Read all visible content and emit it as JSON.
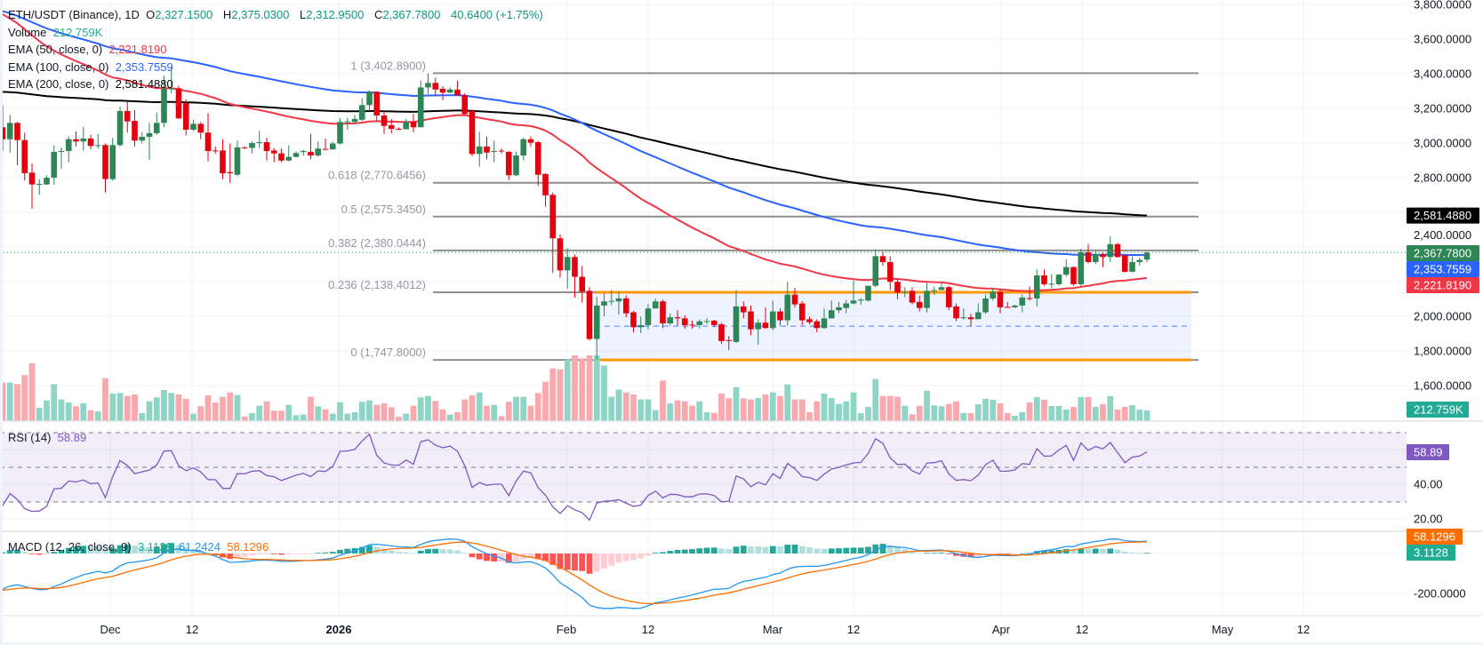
{
  "header": {
    "symbol": "ETH/USDT (Binance), 1D",
    "o_label": "O",
    "open": "2,327.1500",
    "h_label": "H",
    "high": "2,375.0300",
    "l_label": "L",
    "low": "2,312.9500",
    "c_label": "C",
    "close": "2,367.7800",
    "change": "40.6400 (+1.75%)"
  },
  "legend": {
    "volume_label": "Volume",
    "volume_value": "212.759K",
    "ema50_label": "EMA (50, close, 0)",
    "ema50_value": "2,221.8190",
    "ema100_label": "EMA (100, close, 0)",
    "ema100_value": "2,353.7559",
    "ema200_label": "EMA (200, close, 0)",
    "ema200_value": "2,581.4880",
    "rsi_label": "RSI (14)",
    "rsi_value": "58.89",
    "macd_label": "MACD (12, 26, close, 9)",
    "macd_hist": "3.1128",
    "macd_line": "61.2424",
    "macd_signal": "58.1296"
  },
  "colors": {
    "up": "#2e8555",
    "down": "#e3000f",
    "vol_up": "#8fd5c6",
    "vol_down": "#f9a8ae",
    "ema50": "#f23645",
    "ema100": "#2962ff",
    "ema200": "#000000",
    "rsi": "#7e57c2",
    "macd": "#2196f3",
    "signal": "#ff6d00",
    "box": "#ff9800"
  },
  "price_axis": [
    "3,800.0000",
    "3,600.0000",
    "3,400.0000",
    "3,200.0000",
    "3,000.0000",
    "2,800.0000",
    "2,400.0000",
    "2,000.0000",
    "1,800.0000",
    "1,600.0000"
  ],
  "price_axis_values": [
    3800,
    3600,
    3400,
    3200,
    3000,
    2800,
    2400,
    2000,
    1800,
    1600
  ],
  "badges": {
    "ema200": "2,581.4880",
    "last": "2,367.7800",
    "ema100": "2,353.7559",
    "ema50": "2,221.8190",
    "volume": "212.759K",
    "rsi": "58.89",
    "macd_signal": "58.1296",
    "macd_hist": "3.1128"
  },
  "rsi_axis": [
    "40.00",
    "20.00"
  ],
  "macd_axis": [
    "-200.0000"
  ],
  "time_axis": [
    "Dec",
    "12",
    "2026",
    "Feb",
    "12",
    "Mar",
    "12",
    "Apr",
    "12",
    "May",
    "12"
  ],
  "fib": [
    {
      "label": "1 (3,402.8900)",
      "value": 3402.89
    },
    {
      "label": "0.618 (2,770.6456)",
      "value": 2770.6456
    },
    {
      "label": "0.5 (2,575.3450)",
      "value": 2575.345
    },
    {
      "label": "0.382 (2,380.0444)",
      "value": 2380.0444
    },
    {
      "label": "0.236 (2,138.4012)",
      "value": 2138.4012
    },
    {
      "label": "0 (1,747.8000)",
      "value": 1747.8
    }
  ],
  "range_box": {
    "top": 2138.4012,
    "bottom": 1747.8,
    "mid": 1943.1
  },
  "chart_data": {
    "type": "candlestick",
    "title": "ETH/USDT (Binance), 1D",
    "ylim": [
      1520,
      3820
    ],
    "ema_final": {
      "ema50": 2221.819,
      "ema100": 2353.7559,
      "ema200": 2581.488
    },
    "rsi_final": 58.89,
    "macd_final": {
      "macd": 61.2424,
      "signal": 58.1296,
      "hist": 3.1128
    },
    "candles_ohlc": [
      [
        3168,
        3245,
        3005,
        3091
      ],
      [
        3091,
        3219,
        2954,
        3022
      ],
      [
        3022,
        3162,
        2945,
        3116
      ],
      [
        3116,
        3122,
        2872,
        3017
      ],
      [
        3017,
        3060,
        2783,
        2826
      ],
      [
        2829,
        2882,
        2621,
        2761
      ],
      [
        2761,
        2792,
        2701,
        2764
      ],
      [
        2761,
        2814,
        2758,
        2800
      ],
      [
        2800,
        2988,
        2758,
        2949
      ],
      [
        2949,
        2975,
        2851,
        2954
      ],
      [
        2954,
        3040,
        2889,
        3022
      ],
      [
        3022,
        3067,
        2980,
        3009
      ],
      [
        3009,
        3094,
        2957,
        3026
      ],
      [
        3026,
        3048,
        2963,
        2983
      ],
      [
        2983,
        3053,
        2969,
        2988
      ],
      [
        2988,
        2997,
        2715,
        2792
      ],
      [
        2792,
        3031,
        2783,
        2988
      ],
      [
        2988,
        3210,
        2980,
        3185
      ],
      [
        3185,
        3236,
        3060,
        3125
      ],
      [
        3128,
        3190,
        2980,
        3014
      ],
      [
        3014,
        3065,
        2997,
        3036
      ],
      [
        3036,
        3116,
        2903,
        3057
      ],
      [
        3057,
        3176,
        3048,
        3116
      ],
      [
        3116,
        3390,
        3091,
        3313
      ],
      [
        3310,
        3441,
        3287,
        3316
      ],
      [
        3316,
        3330,
        3142,
        3142
      ],
      [
        3231,
        3253,
        3043,
        3077
      ],
      [
        3077,
        3134,
        3070,
        3111
      ],
      [
        3111,
        3122,
        3022,
        3060
      ],
      [
        3060,
        3173,
        2894,
        2954
      ],
      [
        2957,
        2980,
        2940,
        2954
      ],
      [
        2957,
        3022,
        2792,
        2826
      ],
      [
        2832,
        2997,
        2769,
        2826
      ],
      [
        2817,
        3014,
        2809,
        2975
      ],
      [
        2975,
        2980,
        2965,
        2972
      ],
      [
        2972,
        3009,
        2940,
        3000
      ],
      [
        3000,
        3070,
        2971,
        3005
      ],
      [
        3005,
        3031,
        2899,
        2954
      ],
      [
        2957,
        2971,
        2889,
        2940
      ],
      [
        2940,
        2968,
        2889,
        2899
      ],
      [
        2899,
        2988,
        2894,
        2920
      ],
      [
        2920,
        2951,
        2916,
        2942
      ],
      [
        2948,
        2960,
        2927,
        2954
      ],
      [
        2949,
        3053,
        2906,
        2928
      ],
      [
        2928,
        3009,
        2920,
        2968
      ],
      [
        2966,
        3026,
        2960,
        2963
      ],
      [
        2963,
        3009,
        2963,
        2997
      ],
      [
        2997,
        3145,
        2992,
        3122
      ],
      [
        3121,
        3145,
        3077,
        3125
      ],
      [
        3122,
        3162,
        3108,
        3139
      ],
      [
        3134,
        3258,
        3128,
        3219
      ],
      [
        3219,
        3304,
        3185,
        3296
      ],
      [
        3296,
        3299,
        3128,
        3159
      ],
      [
        3159,
        3185,
        3053,
        3099
      ],
      [
        3103,
        3139,
        3057,
        3082
      ],
      [
        3082,
        3090,
        3075,
        3080
      ],
      [
        3080,
        3139,
        3077,
        3122
      ],
      [
        3122,
        3168,
        3063,
        3091
      ],
      [
        3091,
        3361,
        3091,
        3321
      ],
      [
        3321,
        3402,
        3282,
        3347
      ],
      [
        3347,
        3378,
        3270,
        3309
      ],
      [
        3313,
        3327,
        3248,
        3291
      ],
      [
        3291,
        3321,
        3287,
        3309
      ],
      [
        3308,
        3361,
        3275,
        3275
      ],
      [
        3275,
        3287,
        3159,
        3168
      ],
      [
        3185,
        3193,
        2923,
        2937
      ],
      [
        2937,
        3065,
        2863,
        2980
      ],
      [
        2980,
        3036,
        2906,
        2945
      ],
      [
        2950,
        3014,
        2889,
        2954
      ],
      [
        2956,
        2970,
        2940,
        2954
      ],
      [
        2949,
        2954,
        2786,
        2814
      ],
      [
        2814,
        2951,
        2809,
        2928
      ],
      [
        2928,
        3031,
        2899,
        3022
      ],
      [
        3022,
        3039,
        2980,
        3002
      ],
      [
        3005,
        3012,
        2752,
        2817
      ],
      [
        2821,
        2826,
        2633,
        2698
      ],
      [
        2701,
        2715,
        2250,
        2450
      ],
      [
        2450,
        2472,
        2223,
        2265
      ],
      [
        2265,
        2393,
        2159,
        2342
      ],
      [
        2342,
        2356,
        2108,
        2228
      ],
      [
        2228,
        2291,
        2079,
        2142
      ],
      [
        2147,
        2168,
        1860,
        1869
      ],
      [
        1869,
        2113,
        1748,
        2062
      ],
      [
        2062,
        2137,
        2000,
        2086
      ],
      [
        2086,
        2151,
        2065,
        2089
      ],
      [
        2086,
        2142,
        2011,
        2103
      ],
      [
        2103,
        2120,
        1994,
        2017
      ],
      [
        2023,
        2031,
        1908,
        1937
      ],
      [
        1937,
        1999,
        1903,
        1949
      ],
      [
        1949,
        2069,
        1925,
        2045
      ],
      [
        2045,
        2103,
        2045,
        2086
      ],
      [
        2086,
        2096,
        1932,
        1959
      ],
      [
        1959,
        2017,
        1946,
        1994
      ],
      [
        1994,
        2035,
        1946,
        1988
      ],
      [
        1988,
        2006,
        1929,
        1949
      ],
      [
        1952,
        1975,
        1929,
        1949
      ],
      [
        1949,
        1983,
        1929,
        1971
      ],
      [
        1970,
        1990,
        1955,
        1972
      ],
      [
        1975,
        1980,
        1937,
        1949
      ],
      [
        1954,
        1963,
        1840,
        1857
      ],
      [
        1862,
        1886,
        1806,
        1860
      ],
      [
        1852,
        2151,
        1847,
        2057
      ],
      [
        2057,
        2086,
        1988,
        2023
      ],
      [
        2028,
        2062,
        1891,
        1925
      ],
      [
        1925,
        1983,
        1835,
        1963
      ],
      [
        1963,
        2052,
        1929,
        1932
      ],
      [
        1932,
        2091,
        1920,
        2028
      ],
      [
        2028,
        2045,
        1946,
        1977
      ],
      [
        1977,
        2199,
        1946,
        2125
      ],
      [
        2125,
        2164,
        2052,
        2069
      ],
      [
        2074,
        2086,
        1949,
        1977
      ],
      [
        1983,
        1997,
        1954,
        1966
      ],
      [
        1971,
        1983,
        1908,
        1932
      ],
      [
        1932,
        2045,
        1929,
        1988
      ],
      [
        1988,
        2091,
        1988,
        2035
      ],
      [
        2035,
        2083,
        2018,
        2052
      ],
      [
        2048,
        2096,
        2018,
        2074
      ],
      [
        2074,
        2206,
        2069,
        2091
      ],
      [
        2094,
        2105,
        2066,
        2096
      ],
      [
        2091,
        2176,
        2086,
        2176
      ],
      [
        2176,
        2387,
        2168,
        2347
      ],
      [
        2347,
        2373,
        2291,
        2313
      ],
      [
        2313,
        2347,
        2151,
        2199
      ],
      [
        2199,
        2216,
        2099,
        2137
      ],
      [
        2140,
        2168,
        2110,
        2142
      ],
      [
        2147,
        2168,
        2069,
        2079
      ],
      [
        2083,
        2120,
        2028,
        2048
      ],
      [
        2048,
        2193,
        2023,
        2147
      ],
      [
        2148,
        2171,
        2124,
        2151
      ],
      [
        2151,
        2193,
        2151,
        2168
      ],
      [
        2168,
        2176,
        2035,
        2052
      ],
      [
        2057,
        2074,
        1971,
        1988
      ],
      [
        1990,
        2045,
        1982,
        1994
      ],
      [
        1994,
        2014,
        1942,
        1983
      ],
      [
        1983,
        2074,
        1983,
        2023
      ],
      [
        2023,
        2125,
        2014,
        2103
      ],
      [
        2103,
        2164,
        2091,
        2142
      ],
      [
        2142,
        2159,
        2018,
        2052
      ],
      [
        2054,
        2083,
        2048,
        2052
      ],
      [
        2052,
        2065,
        2048,
        2062
      ],
      [
        2062,
        2125,
        2023,
        2108
      ],
      [
        2105,
        2171,
        2091,
        2103
      ],
      [
        2103,
        2270,
        2057,
        2236
      ],
      [
        2236,
        2270,
        2176,
        2185
      ],
      [
        2186,
        2244,
        2160,
        2188
      ],
      [
        2185,
        2245,
        2176,
        2240
      ],
      [
        2240,
        2330,
        2228,
        2284
      ],
      [
        2284,
        2288,
        2176,
        2185
      ],
      [
        2185,
        2390,
        2176,
        2370
      ],
      [
        2370,
        2416,
        2305,
        2313
      ],
      [
        2313,
        2376,
        2301,
        2359
      ],
      [
        2359,
        2370,
        2284,
        2342
      ],
      [
        2342,
        2462,
        2313,
        2416
      ],
      [
        2416,
        2424,
        2339,
        2342
      ],
      [
        2352,
        2356,
        2253,
        2257
      ],
      [
        2257,
        2347,
        2253,
        2313
      ],
      [
        2313,
        2339,
        2291,
        2325
      ],
      [
        2327.15,
        2375.03,
        2312.95,
        2367.78
      ]
    ],
    "volume_k": [
      578,
      767,
      767,
      738,
      915,
      1150,
      265,
      413,
      738,
      431,
      372,
      295,
      354,
      218,
      195,
      855,
      549,
      560,
      502,
      531,
      159,
      395,
      472,
      620,
      560,
      531,
      443,
      148,
      295,
      513,
      372,
      484,
      572,
      519,
      89,
      159,
      307,
      395,
      207,
      207,
      325,
      118,
      130,
      484,
      295,
      236,
      148,
      378,
      148,
      177,
      384,
      413,
      325,
      354,
      277,
      89,
      148,
      307,
      472,
      502,
      401,
      236,
      130,
      177,
      431,
      513,
      572,
      307,
      325,
      100,
      384,
      484,
      484,
      307,
      560,
      785,
      1050,
      1033,
      1227,
      1310,
      1251,
      1310,
      1310,
      1109,
      484,
      631,
      572,
      531,
      431,
      431,
      218,
      808,
      354,
      413,
      395,
      307,
      395,
      177,
      165,
      549,
      454,
      678,
      454,
      431,
      460,
      531,
      572,
      502,
      732,
      431,
      431,
      177,
      395,
      549,
      460,
      342,
      395,
      572,
      159,
      283,
      838,
      502,
      502,
      484,
      307,
      136,
      307,
      608,
      313,
      295,
      342,
      395,
      159,
      159,
      336,
      443,
      425,
      354,
      159,
      106,
      177,
      372,
      478,
      425,
      301,
      301,
      230,
      283,
      478,
      478,
      283,
      336,
      496,
      230,
      283,
      319,
      230,
      212.759
    ]
  }
}
